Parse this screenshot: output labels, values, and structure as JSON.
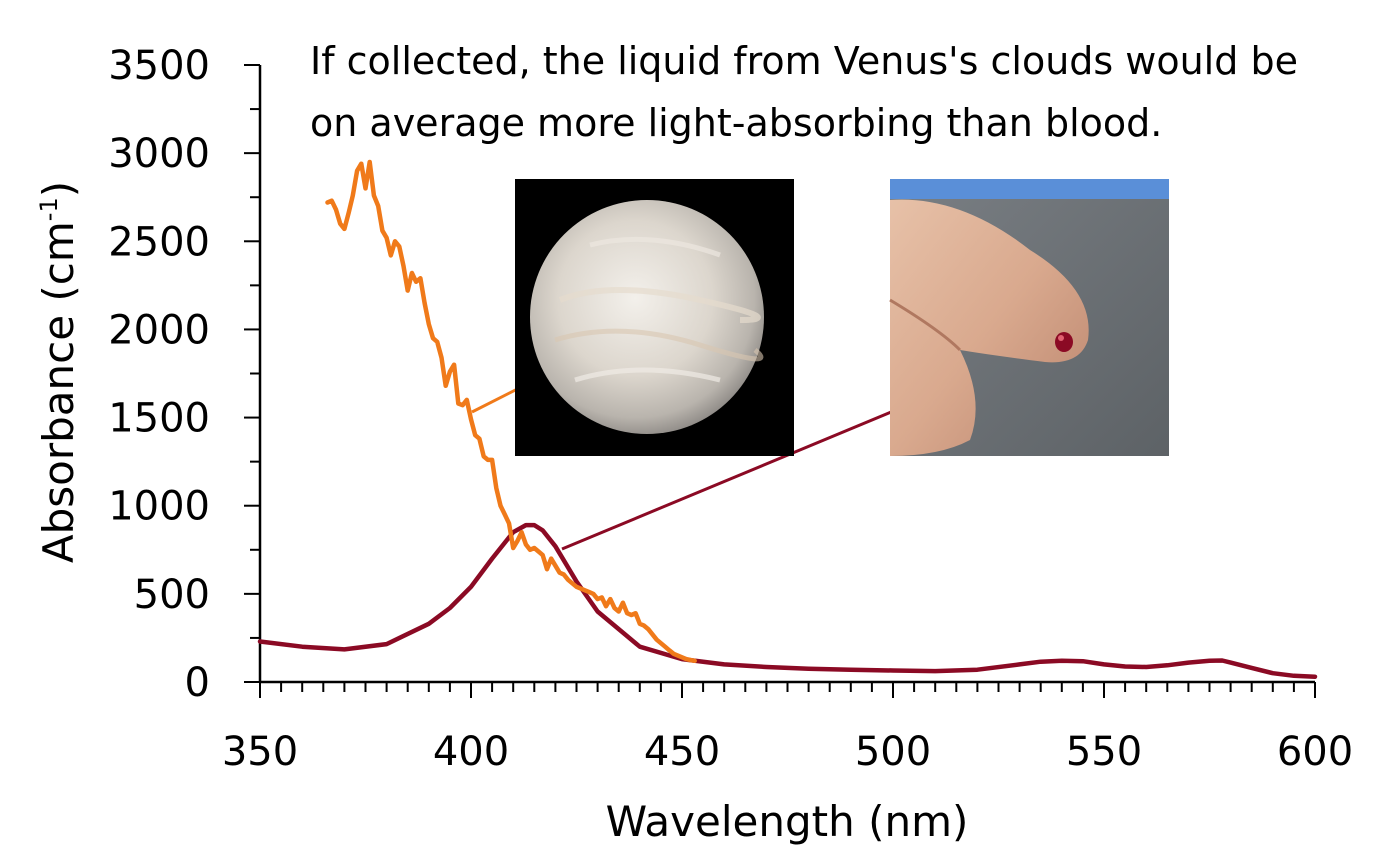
{
  "chart_data": {
    "type": "line",
    "title": "",
    "annotation": {
      "line1": "If collected, the liquid from Venus's clouds would be",
      "line2": "on average more light-absorbing than blood."
    },
    "xlabel": "Wavelength (nm)",
    "ylabel_main": "Absorbance (cm",
    "ylabel_sup": "-1",
    "ylabel_close": ")",
    "xlim": [
      350,
      600
    ],
    "ylim": [
      0,
      3500
    ],
    "xticks": [
      350,
      400,
      450,
      500,
      550,
      600
    ],
    "yticks": [
      0,
      500,
      1000,
      1500,
      2000,
      2500,
      3000,
      3500
    ],
    "x_minor_step": 5,
    "y_minor_step": 250,
    "grid": false,
    "series": [
      {
        "color": "#F07A1A",
        "x": [
          366,
          367,
          368,
          369,
          370,
          371,
          372,
          373,
          374,
          375,
          376,
          377,
          378,
          379,
          380,
          381,
          382,
          383,
          384,
          385,
          386,
          387,
          388,
          389,
          390,
          391,
          392,
          393,
          394,
          395,
          396,
          397,
          398,
          399,
          400,
          401,
          402,
          403,
          404,
          405,
          406,
          407,
          408,
          409,
          410,
          411,
          412,
          413,
          414,
          415,
          416,
          417,
          418,
          419,
          420,
          421,
          422,
          423,
          424,
          425,
          426,
          427,
          428,
          429,
          430,
          431,
          432,
          433,
          434,
          435,
          436,
          437,
          438,
          439,
          440,
          441,
          442,
          443,
          444,
          445,
          446,
          447,
          448,
          449,
          450,
          451,
          452,
          453
        ],
        "y": [
          2720,
          2730,
          2680,
          2600,
          2570,
          2660,
          2760,
          2900,
          2940,
          2800,
          2950,
          2760,
          2700,
          2560,
          2520,
          2420,
          2500,
          2470,
          2360,
          2220,
          2320,
          2270,
          2290,
          2150,
          2030,
          1950,
          1930,
          1840,
          1680,
          1760,
          1800,
          1580,
          1570,
          1600,
          1490,
          1400,
          1380,
          1280,
          1260,
          1260,
          1100,
          1000,
          950,
          900,
          760,
          800,
          850,
          780,
          750,
          760,
          740,
          720,
          640,
          700,
          660,
          620,
          610,
          580,
          560,
          540,
          530,
          520,
          510,
          500,
          470,
          480,
          430,
          470,
          420,
          400,
          450,
          390,
          380,
          390,
          330,
          320,
          300,
          270,
          240,
          220,
          200,
          180,
          160,
          150,
          140,
          130,
          125,
          120
        ]
      },
      {
        "color": "#8B0A24",
        "x": [
          350,
          360,
          370,
          380,
          390,
          395,
          400,
          405,
          410,
          413,
          415,
          417,
          420,
          425,
          430,
          440,
          450,
          460,
          470,
          480,
          490,
          500,
          510,
          520,
          530,
          535,
          540,
          545,
          550,
          555,
          560,
          565,
          570,
          575,
          578,
          580,
          585,
          590,
          595,
          600
        ],
        "y": [
          230,
          200,
          185,
          215,
          330,
          420,
          540,
          700,
          850,
          890,
          890,
          860,
          770,
          570,
          400,
          200,
          130,
          100,
          85,
          75,
          70,
          65,
          62,
          70,
          100,
          115,
          120,
          118,
          100,
          88,
          85,
          95,
          110,
          120,
          122,
          110,
          80,
          50,
          35,
          30
        ]
      }
    ]
  }
}
